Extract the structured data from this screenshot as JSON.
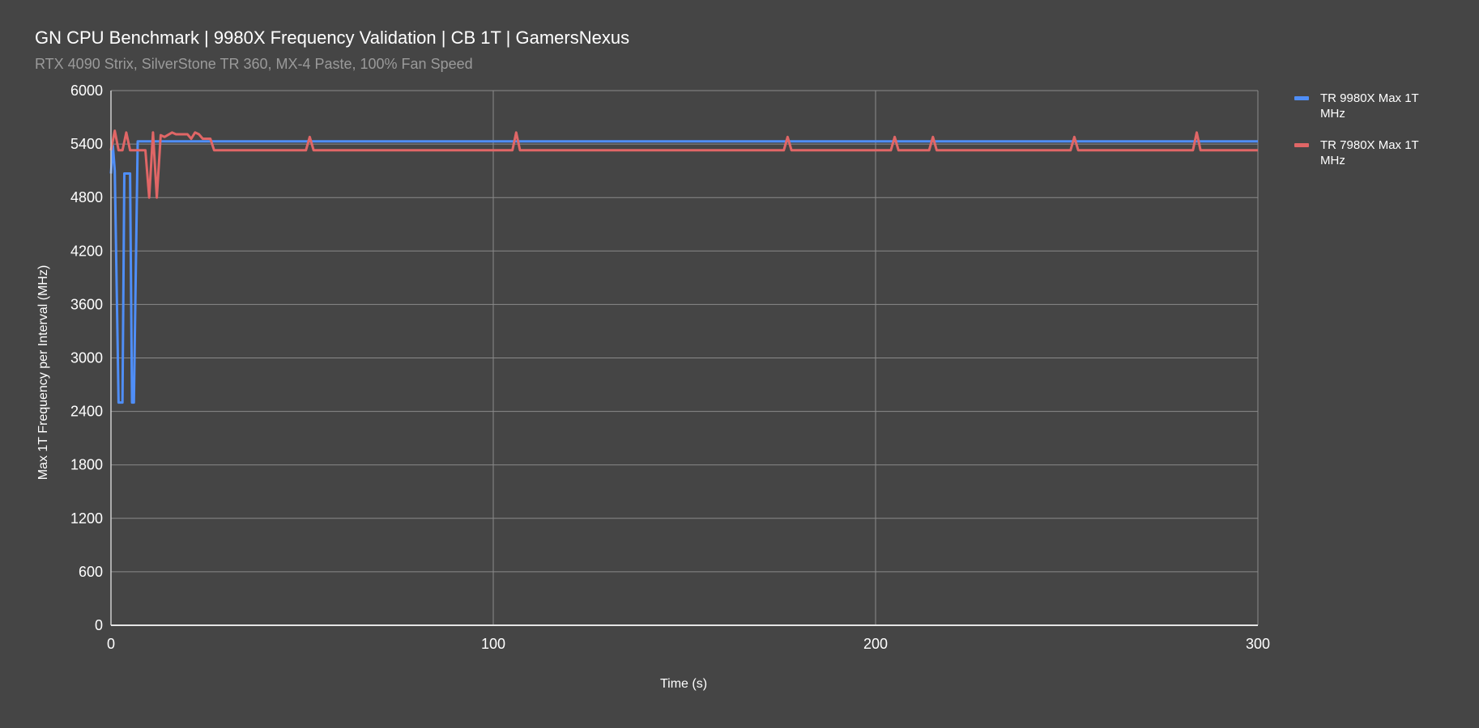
{
  "chart_data": {
    "type": "line",
    "title": "GN CPU Benchmark | 9980X Frequency Validation | CB 1T | GamersNexus",
    "subtitle": "RTX 4090 Strix, SilverStone TR 360, MX-4 Paste, 100% Fan Speed",
    "xlabel": "Time (s)",
    "ylabel": "Max 1T Frequency per Interval (MHz)",
    "xlim": [
      0,
      300
    ],
    "ylim": [
      0,
      6000
    ],
    "xticks": [
      0,
      100,
      200,
      300
    ],
    "yticks": [
      0,
      600,
      1200,
      1800,
      2400,
      3000,
      3600,
      4200,
      4800,
      5400,
      6000
    ],
    "grid": true,
    "legend_position": "right",
    "series": [
      {
        "name": "TR 9980X Max 1T MHz",
        "color": "#4f8ef7",
        "points": [
          [
            0,
            5070
          ],
          [
            0.5,
            5380
          ],
          [
            1,
            5100
          ],
          [
            2,
            2500
          ],
          [
            3,
            2500
          ],
          [
            3.5,
            5070
          ],
          [
            5,
            5070
          ],
          [
            5.5,
            2500
          ],
          [
            6,
            2500
          ],
          [
            7,
            5430
          ],
          [
            300,
            5430
          ]
        ]
      },
      {
        "name": "TR 7980X Max 1T MHz",
        "color": "#e06666",
        "points": [
          [
            0,
            5330
          ],
          [
            1,
            5550
          ],
          [
            2,
            5330
          ],
          [
            3,
            5330
          ],
          [
            4,
            5530
          ],
          [
            5,
            5330
          ],
          [
            9,
            5330
          ],
          [
            10,
            4800
          ],
          [
            11,
            5530
          ],
          [
            12,
            4800
          ],
          [
            13,
            5500
          ],
          [
            14,
            5480
          ],
          [
            16,
            5530
          ],
          [
            17,
            5510
          ],
          [
            20,
            5510
          ],
          [
            21,
            5460
          ],
          [
            22,
            5530
          ],
          [
            23,
            5510
          ],
          [
            24,
            5460
          ],
          [
            26,
            5460
          ],
          [
            27,
            5330
          ],
          [
            51,
            5330
          ],
          [
            52,
            5480
          ],
          [
            53,
            5330
          ],
          [
            105,
            5330
          ],
          [
            106,
            5530
          ],
          [
            107,
            5330
          ],
          [
            176,
            5330
          ],
          [
            177,
            5480
          ],
          [
            178,
            5330
          ],
          [
            204,
            5330
          ],
          [
            205,
            5480
          ],
          [
            206,
            5330
          ],
          [
            214,
            5330
          ],
          [
            215,
            5480
          ],
          [
            216,
            5330
          ],
          [
            251,
            5330
          ],
          [
            252,
            5480
          ],
          [
            253,
            5330
          ],
          [
            283,
            5330
          ],
          [
            284,
            5530
          ],
          [
            285,
            5330
          ],
          [
            300,
            5330
          ]
        ]
      }
    ]
  }
}
